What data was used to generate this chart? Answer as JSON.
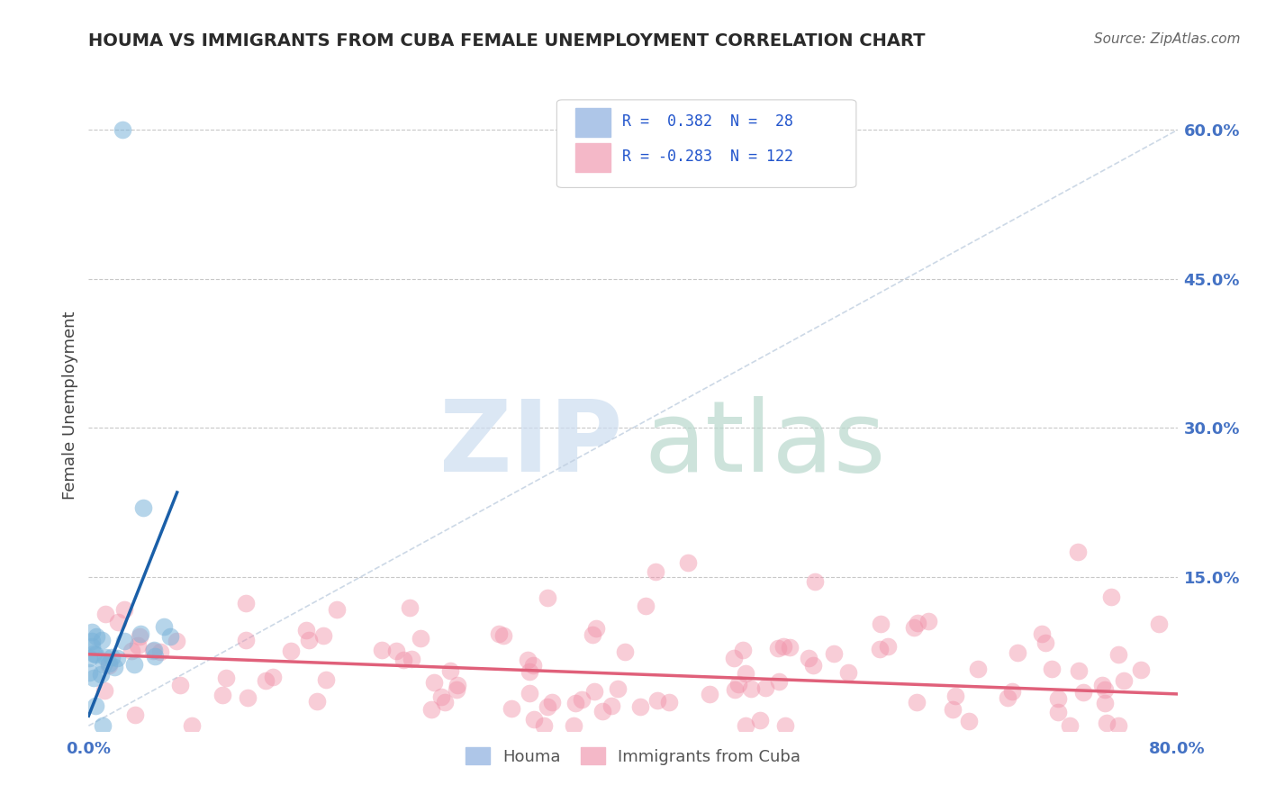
{
  "title": "HOUMA VS IMMIGRANTS FROM CUBA FEMALE UNEMPLOYMENT CORRELATION CHART",
  "source": "Source: ZipAtlas.com",
  "ylabel": "Female Unemployment",
  "houma_color": "#7ab3d9",
  "cuba_color": "#f090a8",
  "houma_line_color": "#1a5fa8",
  "cuba_line_color": "#e0607a",
  "diag_line_color": "#c0cfe0",
  "background_color": "#ffffff",
  "grid_color": "#c8c8c8",
  "title_color": "#2a2a2a",
  "axis_tick_color": "#4472c4",
  "source_color": "#666666",
  "ylabel_color": "#444444",
  "legend_box_color": "#aec6e8",
  "legend_box_color2": "#f4b8c8",
  "legend_text_color": "#2255cc",
  "legend_r1": "R =  0.382  N =  28",
  "legend_r2": "R = -0.283  N = 122",
  "watermark_zip_color": "#ccddf0",
  "watermark_atlas_color": "#b8d8cc",
  "xlim": [
    0.0,
    0.8
  ],
  "ylim": [
    -0.005,
    0.65
  ],
  "right_yticks": [
    0.0,
    0.15,
    0.3,
    0.45,
    0.6
  ],
  "right_yticklabels": [
    "",
    "15.0%",
    "30.0%",
    "45.0%",
    "60.0%"
  ],
  "houma_trend_x": [
    0.0,
    0.065
  ],
  "houma_trend_y": [
    0.01,
    0.235
  ],
  "cuba_trend_x": [
    0.0,
    0.8
  ],
  "cuba_trend_y": [
    0.072,
    0.032
  ]
}
